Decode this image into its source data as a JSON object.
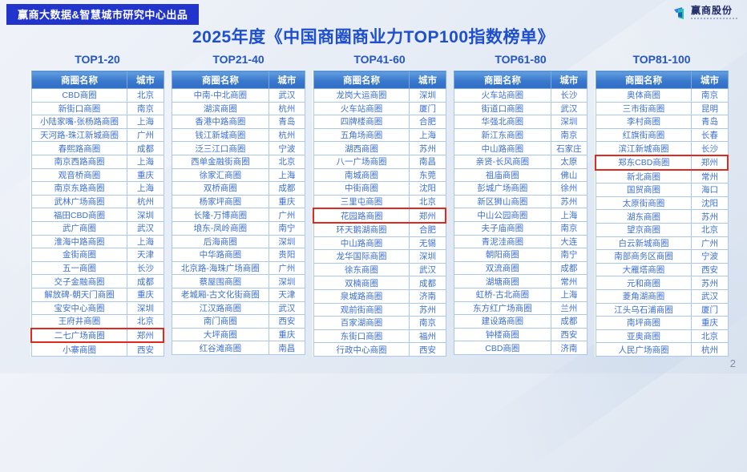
{
  "page": {
    "banner": "赢商大数据&智慧城市研究中心出品",
    "title": "2025年度《中国商圈商业力TOP100指数榜单》",
    "logo_name": "赢商股份",
    "page_number": "2"
  },
  "columns": {
    "name_header": "商圈名称",
    "city_header": "城市"
  },
  "colors": {
    "banner_bg": "#2134cb",
    "title_blue": "#1d4fd0",
    "header_blue": "#2f6ec6",
    "row_text_blue": "#3b6fd6",
    "table_border": "#a9c9ec",
    "highlight_red": "#df2a1e",
    "logo_blue": "#2f7fe0",
    "logo_teal": "#25c4b5"
  },
  "groups": [
    {
      "label": "TOP1-20",
      "rows": [
        {
          "district": "CBD商圈",
          "city": "北京"
        },
        {
          "district": "新街口商圈",
          "city": "南京"
        },
        {
          "district": "小陆家嘴-张杨路商圈",
          "city": "上海"
        },
        {
          "district": "天河路-珠江新城商圈",
          "city": "广州"
        },
        {
          "district": "春熙路商圈",
          "city": "成都"
        },
        {
          "district": "南京西路商圈",
          "city": "上海"
        },
        {
          "district": "观音桥商圈",
          "city": "重庆"
        },
        {
          "district": "南京东路商圈",
          "city": "上海"
        },
        {
          "district": "武林广场商圈",
          "city": "杭州"
        },
        {
          "district": "福田CBD商圈",
          "city": "深圳"
        },
        {
          "district": "武广商圈",
          "city": "武汉"
        },
        {
          "district": "淮海中路商圈",
          "city": "上海"
        },
        {
          "district": "金街商圈",
          "city": "天津"
        },
        {
          "district": "五一商圈",
          "city": "长沙"
        },
        {
          "district": "交子金融商圈",
          "city": "成都"
        },
        {
          "district": "解放碑-朝天门商圈",
          "city": "重庆"
        },
        {
          "district": "宝安中心商圈",
          "city": "深圳"
        },
        {
          "district": "王府井商圈",
          "city": "北京"
        },
        {
          "district": "二七广场商圈",
          "city": "郑州",
          "highlight": true
        },
        {
          "district": "小寨商圈",
          "city": "西安"
        }
      ]
    },
    {
      "label": "TOP21-40",
      "rows": [
        {
          "district": "中南-中北商圈",
          "city": "武汉"
        },
        {
          "district": "湖滨商圈",
          "city": "杭州"
        },
        {
          "district": "香港中路商圈",
          "city": "青岛"
        },
        {
          "district": "钱江新城商圈",
          "city": "杭州"
        },
        {
          "district": "泛三江口商圈",
          "city": "宁波"
        },
        {
          "district": "西单金融街商圈",
          "city": "北京"
        },
        {
          "district": "徐家汇商圈",
          "city": "上海"
        },
        {
          "district": "双桥商圈",
          "city": "成都"
        },
        {
          "district": "杨家坪商圈",
          "city": "重庆"
        },
        {
          "district": "长隆-万博商圈",
          "city": "广州"
        },
        {
          "district": "埌东-凤岭商圈",
          "city": "南宁"
        },
        {
          "district": "后海商圈",
          "city": "深圳"
        },
        {
          "district": "中华路商圈",
          "city": "贵阳"
        },
        {
          "district": "北京路-海珠广场商圈",
          "city": "广州"
        },
        {
          "district": "蔡屋围商圈",
          "city": "深圳"
        },
        {
          "district": "老城厢-古文化街商圈",
          "city": "天津"
        },
        {
          "district": "江汉路商圈",
          "city": "武汉"
        },
        {
          "district": "南门商圈",
          "city": "西安"
        },
        {
          "district": "大坪商圈",
          "city": "重庆"
        },
        {
          "district": "红谷滩商圈",
          "city": "南昌"
        }
      ]
    },
    {
      "label": "TOP41-60",
      "rows": [
        {
          "district": "龙岗大运商圈",
          "city": "深圳"
        },
        {
          "district": "火车站商圈",
          "city": "厦门"
        },
        {
          "district": "四牌楼商圈",
          "city": "合肥"
        },
        {
          "district": "五角场商圈",
          "city": "上海"
        },
        {
          "district": "湖西商圈",
          "city": "苏州"
        },
        {
          "district": "八一广场商圈",
          "city": "南昌"
        },
        {
          "district": "南城商圈",
          "city": "东莞"
        },
        {
          "district": "中街商圈",
          "city": "沈阳"
        },
        {
          "district": "三里屯商圈",
          "city": "北京"
        },
        {
          "district": "花园路商圈",
          "city": "郑州",
          "highlight": true
        },
        {
          "district": "环天鹅湖商圈",
          "city": "合肥"
        },
        {
          "district": "中山路商圈",
          "city": "无锡"
        },
        {
          "district": "龙华国际商圈",
          "city": "深圳"
        },
        {
          "district": "徐东商圈",
          "city": "武汉"
        },
        {
          "district": "双楠商圈",
          "city": "成都"
        },
        {
          "district": "泉城路商圈",
          "city": "济南"
        },
        {
          "district": "观前街商圈",
          "city": "苏州"
        },
        {
          "district": "百家湖商圈",
          "city": "南京"
        },
        {
          "district": "东街口商圈",
          "city": "福州"
        },
        {
          "district": "行政中心商圈",
          "city": "西安"
        }
      ]
    },
    {
      "label": "TOP61-80",
      "rows": [
        {
          "district": "火车站商圈",
          "city": "长沙"
        },
        {
          "district": "街道口商圈",
          "city": "武汉"
        },
        {
          "district": "华强北商圈",
          "city": "深圳"
        },
        {
          "district": "新江东商圈",
          "city": "南京"
        },
        {
          "district": "中山路商圈",
          "city": "石家庄"
        },
        {
          "district": "亲贤-长风商圈",
          "city": "太原"
        },
        {
          "district": "祖庙商圈",
          "city": "佛山"
        },
        {
          "district": "彭城广场商圈",
          "city": "徐州"
        },
        {
          "district": "新区狮山商圈",
          "city": "苏州"
        },
        {
          "district": "中山公园商圈",
          "city": "上海"
        },
        {
          "district": "夫子庙商圈",
          "city": "南京"
        },
        {
          "district": "青泥洼商圈",
          "city": "大连"
        },
        {
          "district": "朝阳商圈",
          "city": "南宁"
        },
        {
          "district": "双流商圈",
          "city": "成都"
        },
        {
          "district": "湖塘商圈",
          "city": "常州"
        },
        {
          "district": "虹桥-古北商圈",
          "city": "上海"
        },
        {
          "district": "东方红广场商圈",
          "city": "兰州"
        },
        {
          "district": "建设路商圈",
          "city": "成都"
        },
        {
          "district": "钟楼商圈",
          "city": "西安"
        },
        {
          "district": "CBD商圈",
          "city": "济南"
        }
      ]
    },
    {
      "label": "TOP81-100",
      "rows": [
        {
          "district": "奥体商圈",
          "city": "南京"
        },
        {
          "district": "三市街商圈",
          "city": "昆明"
        },
        {
          "district": "李村商圈",
          "city": "青岛"
        },
        {
          "district": "红旗街商圈",
          "city": "长春"
        },
        {
          "district": "滨江新城商圈",
          "city": "长沙"
        },
        {
          "district": "郑东CBD商圈",
          "city": "郑州",
          "highlight": true
        },
        {
          "district": "新北商圈",
          "city": "常州"
        },
        {
          "district": "国贸商圈",
          "city": "海口"
        },
        {
          "district": "太原街商圈",
          "city": "沈阳"
        },
        {
          "district": "湖东商圈",
          "city": "苏州"
        },
        {
          "district": "望京商圈",
          "city": "北京"
        },
        {
          "district": "白云新城商圈",
          "city": "广州"
        },
        {
          "district": "南部商务区商圈",
          "city": "宁波"
        },
        {
          "district": "大雁塔商圈",
          "city": "西安"
        },
        {
          "district": "元和商圈",
          "city": "苏州"
        },
        {
          "district": "菱角湖商圈",
          "city": "武汉"
        },
        {
          "district": "江头乌石浦商圈",
          "city": "厦门"
        },
        {
          "district": "南坪商圈",
          "city": "重庆"
        },
        {
          "district": "亚奥商圈",
          "city": "北京"
        },
        {
          "district": "人民广场商圈",
          "city": "杭州"
        }
      ]
    }
  ]
}
